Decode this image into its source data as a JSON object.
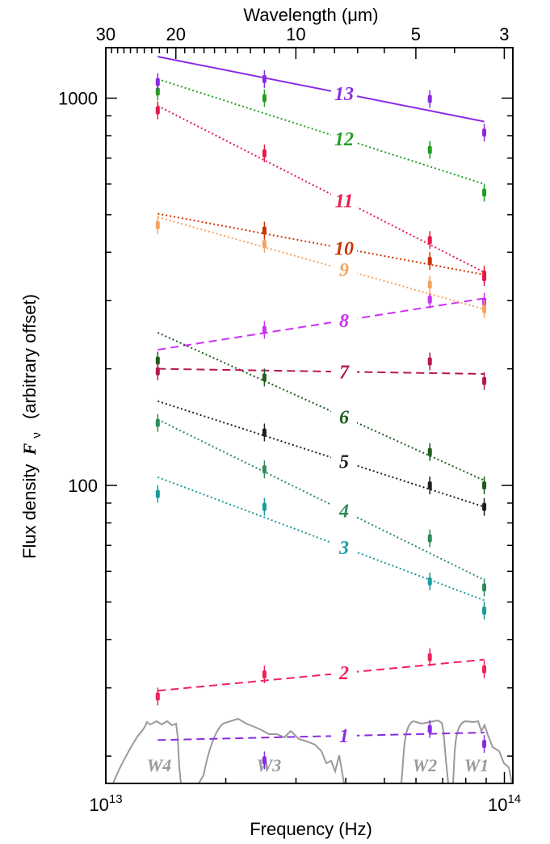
{
  "chart_data": {
    "type": "line",
    "xlabel": "Frequency (Hz)",
    "x2label": "Wavelength (μm)",
    "ylabel_prefix": "Flux  density",
    "ylabel_symbol": "F",
    "ylabel_sub": "ν",
    "ylabel_suffix": "(arbitrary offset)",
    "x_scale": "log",
    "y_scale": "log",
    "xlim": [
      10000000000000.0,
      105000000000000.0
    ],
    "ylim": [
      17,
      1350
    ],
    "x_tick_labels": [
      {
        "base": "10",
        "exp": "13",
        "value": 10000000000000.0
      },
      {
        "base": "10",
        "exp": "14",
        "value": 100000000000000.0
      }
    ],
    "y_tick_labels": [
      {
        "label": "100",
        "value": 100
      },
      {
        "label": "1000",
        "value": 1000
      }
    ],
    "top_tick_labels": [
      {
        "label": "30",
        "value": 30
      },
      {
        "label": "20",
        "value": 20
      },
      {
        "label": "10",
        "value": 10
      },
      {
        "label": "5",
        "value": 5
      },
      {
        "label": "3",
        "value": 3
      }
    ],
    "grid": false,
    "bands": [
      {
        "name": "W4",
        "x": 13500000000000.0
      },
      {
        "name": "W3",
        "x": 25000000000000.0
      },
      {
        "name": "W2",
        "x": 65000000000000.0
      },
      {
        "name": "W1",
        "x": 89000000000000.0
      }
    ],
    "x": [
      13500000000000.0,
      25000000000000.0,
      65000000000000.0,
      89000000000000.0
    ],
    "series": [
      {
        "name": "1",
        "color": "#8a2be2",
        "style": "dashed",
        "fit": [
          22,
          23
        ],
        "values": [
          null,
          19.5,
          23.5,
          21.5
        ]
      },
      {
        "name": "2",
        "color": "#f0215b",
        "style": "dashed",
        "fit": [
          29.5,
          35.5
        ],
        "values": [
          28.5,
          32.5,
          36,
          33.5
        ]
      },
      {
        "name": "3",
        "color": "#1a9c9c",
        "style": "dotted",
        "fit": [
          105,
          50.5
        ],
        "values": [
          95,
          88,
          56.5,
          47.5
        ]
      },
      {
        "name": "4",
        "color": "#2e8b57",
        "style": "dotted",
        "fit": [
          148,
          57
        ],
        "values": [
          145,
          110,
          73,
          54.5
        ]
      },
      {
        "name": "5",
        "color": "#1f1f1f",
        "style": "dotted",
        "fit": [
          165,
          88
        ],
        "values": [
          null,
          137,
          100,
          88
        ]
      },
      {
        "name": "6",
        "color": "#1e5c1e",
        "style": "dotted",
        "fit": [
          248,
          103
        ],
        "values": [
          210,
          190,
          122,
          100
        ]
      },
      {
        "name": "7",
        "color": "#b5174f",
        "style": "dashed",
        "fit": [
          200,
          194
        ],
        "values": [
          197,
          null,
          209,
          186
        ]
      },
      {
        "name": "8",
        "color": "#c833f0",
        "style": "dashed",
        "fit": [
          224,
          304
        ],
        "values": [
          null,
          252,
          302,
          298
        ]
      },
      {
        "name": "9",
        "color": "#f4a460",
        "style": "dotted",
        "fit": [
          493,
          285
        ],
        "values": [
          470,
          420,
          330,
          285
        ]
      },
      {
        "name": "10",
        "color": "#cc3300",
        "style": "dotted",
        "fit": [
          503,
          350
        ],
        "values": [
          null,
          455,
          380,
          350
        ]
      },
      {
        "name": "11",
        "color": "#e6194b",
        "style": "dotted",
        "fit": [
          955,
          355
        ],
        "values": [
          930,
          720,
          430,
          345
        ]
      },
      {
        "name": "12",
        "color": "#22a022",
        "style": "dotted",
        "fit": [
          1120,
          600
        ],
        "values": [
          1040,
          1000,
          735,
          570
        ]
      },
      {
        "name": "13",
        "color": "#8a2be2",
        "style": "solid",
        "fit": [
          1280,
          870
        ],
        "values": [
          1100,
          1120,
          995,
          815
        ]
      }
    ]
  }
}
